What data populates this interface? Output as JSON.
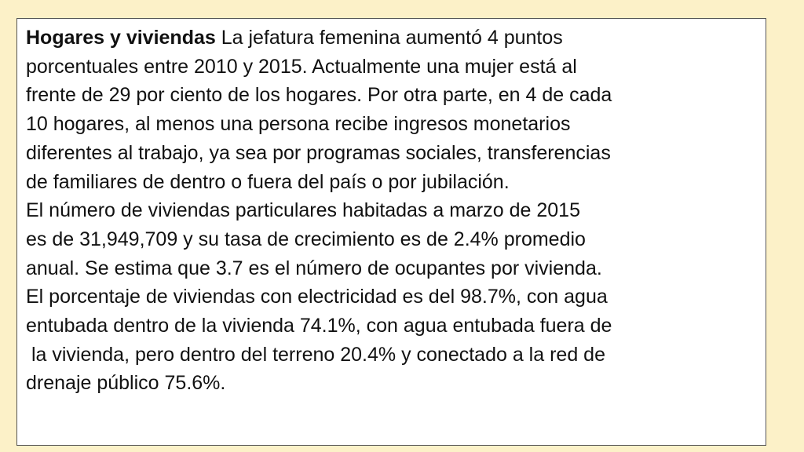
{
  "heading": "Hogares y viviendas",
  "lines": [
    " La jefatura femenina aumentó 4 puntos",
    "porcentuales entre 2010 y 2015. Actualmente una mujer está al",
    "frente de 29 por ciento de los hogares. Por otra parte, en 4 de cada",
    "10 hogares, al menos una persona recibe ingresos monetarios",
    "diferentes al trabajo, ya sea por programas sociales, transferencias",
    "de familiares de dentro o fuera del país o por jubilación.",
    "El número de viviendas particulares habitadas a marzo de 2015",
    "es de 31,949,709 y su tasa de crecimiento es de 2.4% promedio",
    "anual. Se estima que 3.7 es el número de ocupantes por vivienda.",
    "El porcentaje de viviendas con electricidad es del 98.7%, con agua",
    "entubada dentro de la vivienda 74.1%, con agua entubada fuera de",
    " la vivienda, pero dentro del terreno 20.4% y conectado a la red de",
    "drenaje público 75.6%."
  ]
}
